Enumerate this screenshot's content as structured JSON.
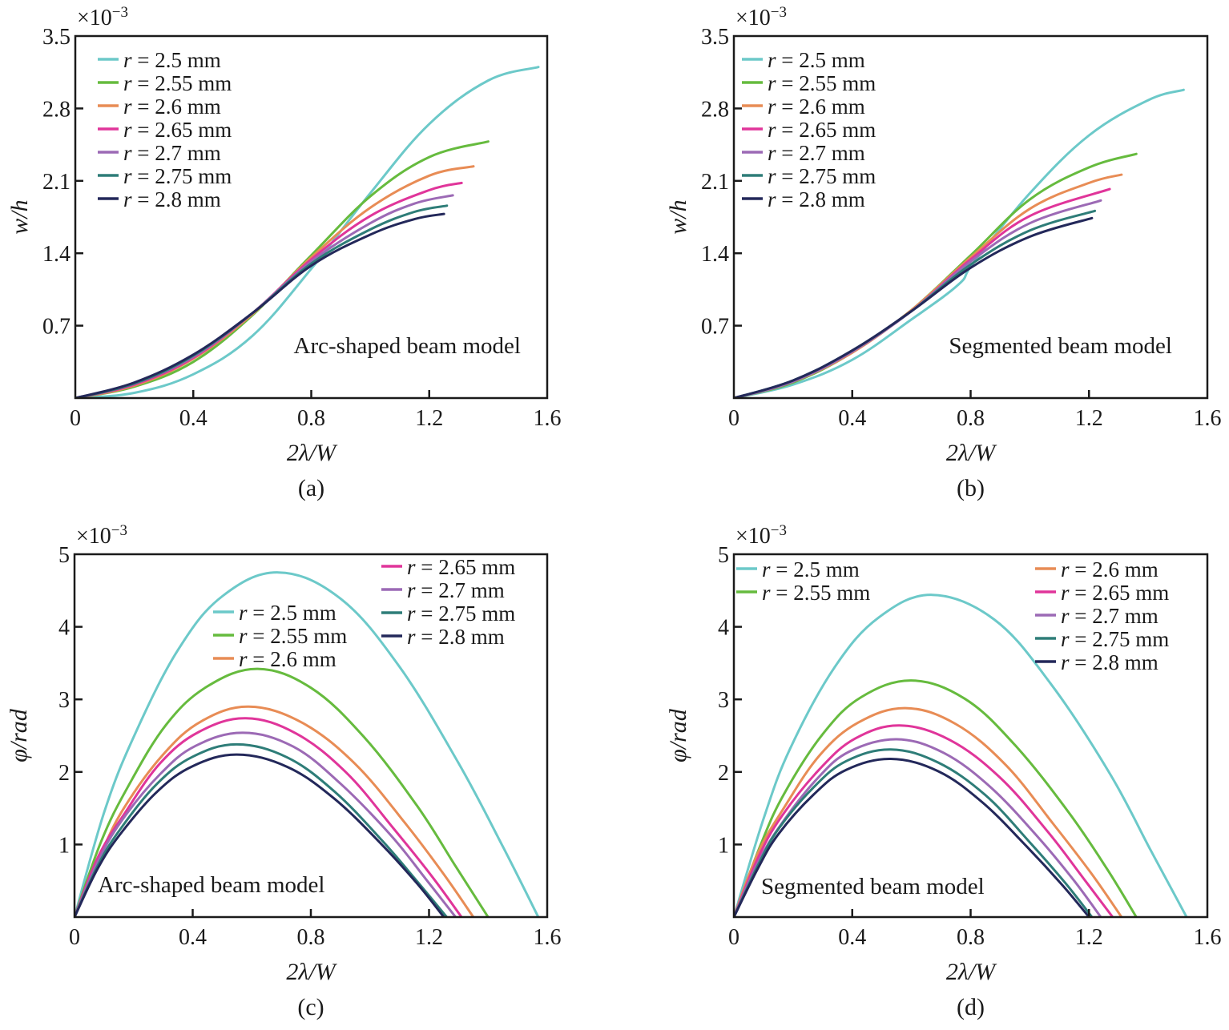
{
  "chart_data": [
    {
      "panel": "(a)",
      "type": "line",
      "title": "",
      "annotation": "Arc-shaped beam model",
      "xlabel": "2λ/W",
      "ylabel": "w/h",
      "y_multiplier": "×10⁻³",
      "xlim": [
        0,
        1.6
      ],
      "ylim": [
        0,
        3.5
      ],
      "xticks": [
        0,
        0.4,
        0.8,
        1.2,
        1.6
      ],
      "xtick_labels": [
        "0",
        "0.4",
        "0.8",
        "1.2",
        "1.6"
      ],
      "yticks": [
        0.7,
        1.4,
        2.1,
        2.8,
        3.5
      ],
      "ytick_labels": [
        "0.7",
        "1.4",
        "2.1",
        "2.8",
        "3.5"
      ],
      "grid": false,
      "legend_position": "top-left",
      "series": [
        {
          "name": "r = 2.5 mm",
          "color": "#6cc9c9",
          "x": [
            0,
            0.2,
            0.4,
            0.6,
            0.8,
            1.0,
            1.2,
            1.4,
            1.57
          ],
          "y": [
            0,
            0.05,
            0.23,
            0.6,
            1.25,
            1.98,
            2.65,
            3.07,
            3.2
          ]
        },
        {
          "name": "r = 2.55 mm",
          "color": "#66bb3e",
          "x": [
            0,
            0.2,
            0.4,
            0.6,
            0.8,
            1.0,
            1.2,
            1.4
          ],
          "y": [
            0,
            0.11,
            0.35,
            0.8,
            1.38,
            1.95,
            2.33,
            2.48
          ]
        },
        {
          "name": "r = 2.6 mm",
          "color": "#e88c55",
          "x": [
            0,
            0.2,
            0.4,
            0.6,
            0.8,
            1.0,
            1.2,
            1.35
          ],
          "y": [
            0,
            0.12,
            0.38,
            0.81,
            1.36,
            1.84,
            2.15,
            2.24
          ]
        },
        {
          "name": "r = 2.65 mm",
          "color": "#e0359a",
          "x": [
            0,
            0.2,
            0.4,
            0.6,
            0.8,
            1.0,
            1.2,
            1.31
          ],
          "y": [
            0,
            0.13,
            0.39,
            0.82,
            1.34,
            1.76,
            2.01,
            2.08
          ]
        },
        {
          "name": "r = 2.7 mm",
          "color": "#9c6ab5",
          "x": [
            0,
            0.2,
            0.4,
            0.6,
            0.8,
            1.0,
            1.15,
            1.28
          ],
          "y": [
            0,
            0.14,
            0.4,
            0.82,
            1.32,
            1.69,
            1.88,
            1.96
          ]
        },
        {
          "name": "r = 2.75 mm",
          "color": "#2e7d78",
          "x": [
            0,
            0.2,
            0.4,
            0.6,
            0.8,
            1.0,
            1.15,
            1.26
          ],
          "y": [
            0,
            0.14,
            0.41,
            0.82,
            1.3,
            1.63,
            1.8,
            1.86
          ]
        },
        {
          "name": "r = 2.8 mm",
          "color": "#23285a",
          "x": [
            0,
            0.2,
            0.4,
            0.6,
            0.8,
            1.0,
            1.15,
            1.25
          ],
          "y": [
            0,
            0.15,
            0.42,
            0.82,
            1.28,
            1.58,
            1.73,
            1.78
          ]
        }
      ]
    },
    {
      "panel": "(b)",
      "type": "line",
      "title": "",
      "annotation": "Segmented beam model",
      "xlabel": "2λ/W",
      "ylabel": "w/h",
      "y_multiplier": "×10⁻³",
      "xlim": [
        0,
        1.6
      ],
      "ylim": [
        0,
        3.5
      ],
      "xticks": [
        0,
        0.4,
        0.8,
        1.2,
        1.6
      ],
      "xtick_labels": [
        "0",
        "0.4",
        "0.8",
        "1.2",
        "1.6"
      ],
      "yticks": [
        0.7,
        1.4,
        2.1,
        2.8,
        3.5
      ],
      "ytick_labels": [
        "0.7",
        "1.4",
        "2.1",
        "2.8",
        "3.5"
      ],
      "grid": false,
      "legend_position": "top-left",
      "series": [
        {
          "name": "r = 2.5 mm",
          "color": "#6cc9c9",
          "x": [
            0,
            0.2,
            0.4,
            0.6,
            0.76,
            0.81,
            1.0,
            1.2,
            1.4,
            1.52
          ],
          "y": [
            0,
            0.13,
            0.37,
            0.76,
            1.1,
            1.31,
            1.98,
            2.54,
            2.88,
            2.98
          ]
        },
        {
          "name": "r = 2.55 mm",
          "color": "#66bb3e",
          "x": [
            0,
            0.2,
            0.4,
            0.6,
            0.8,
            1.0,
            1.2,
            1.36
          ],
          "y": [
            0,
            0.15,
            0.44,
            0.85,
            1.38,
            1.92,
            2.23,
            2.36
          ]
        },
        {
          "name": "r = 2.6 mm",
          "color": "#e88c55",
          "x": [
            0,
            0.2,
            0.4,
            0.6,
            0.8,
            1.0,
            1.2,
            1.31
          ],
          "y": [
            0,
            0.16,
            0.44,
            0.85,
            1.36,
            1.83,
            2.08,
            2.16
          ]
        },
        {
          "name": "r = 2.65 mm",
          "color": "#e0359a",
          "x": [
            0,
            0.2,
            0.4,
            0.6,
            0.8,
            1.0,
            1.27
          ],
          "y": [
            0,
            0.16,
            0.45,
            0.84,
            1.34,
            1.76,
            2.02
          ]
        },
        {
          "name": "r = 2.7 mm",
          "color": "#9c6ab5",
          "x": [
            0,
            0.2,
            0.4,
            0.6,
            0.8,
            1.0,
            1.24
          ],
          "y": [
            0,
            0.16,
            0.45,
            0.84,
            1.32,
            1.69,
            1.91
          ]
        },
        {
          "name": "r = 2.75 mm",
          "color": "#2e7d78",
          "x": [
            0,
            0.2,
            0.4,
            0.6,
            0.8,
            1.0,
            1.22
          ],
          "y": [
            0,
            0.17,
            0.46,
            0.84,
            1.29,
            1.62,
            1.81
          ]
        },
        {
          "name": "r = 2.8 mm",
          "color": "#23285a",
          "x": [
            0,
            0.2,
            0.4,
            0.6,
            0.8,
            1.0,
            1.21
          ],
          "y": [
            0,
            0.17,
            0.46,
            0.84,
            1.26,
            1.56,
            1.74
          ]
        }
      ]
    },
    {
      "panel": "(c)",
      "type": "line",
      "title": "",
      "annotation": "Arc-shaped beam model",
      "xlabel": "2λ/W",
      "ylabel": "φ/rad",
      "y_multiplier": "×10⁻³",
      "xlim": [
        0,
        1.6
      ],
      "ylim": [
        0,
        5
      ],
      "xticks": [
        0,
        0.4,
        0.8,
        1.2,
        1.6
      ],
      "xtick_labels": [
        "0",
        "0.4",
        "0.8",
        "1.2",
        "1.6"
      ],
      "yticks": [
        1,
        2,
        3,
        4,
        5
      ],
      "ytick_labels": [
        "1",
        "2",
        "3",
        "4",
        "5"
      ],
      "grid": false,
      "legend_position": "top-center / top-right (two columns)",
      "series": [
        {
          "name": "r = 2.5 mm",
          "color": "#6cc9c9",
          "x": [
            0,
            0.1,
            0.2,
            0.35,
            0.5,
            0.69,
            0.9,
            1.1,
            1.3,
            1.45,
            1.57
          ],
          "y": [
            0,
            1.44,
            2.48,
            3.68,
            4.42,
            4.75,
            4.39,
            3.45,
            2.12,
            0.97,
            0
          ]
        },
        {
          "name": "r = 2.55 mm",
          "color": "#66bb3e",
          "x": [
            0,
            0.09,
            0.18,
            0.31,
            0.45,
            0.62,
            0.8,
            0.98,
            1.16,
            1.29,
            1.4
          ],
          "y": [
            0,
            1.04,
            1.79,
            2.65,
            3.18,
            3.42,
            3.16,
            2.48,
            1.53,
            0.7,
            0
          ]
        },
        {
          "name": "r = 2.6 mm",
          "color": "#e88c55",
          "x": [
            0,
            0.09,
            0.17,
            0.3,
            0.43,
            0.59,
            0.77,
            0.95,
            1.12,
            1.25,
            1.35
          ],
          "y": [
            0,
            0.88,
            1.52,
            2.24,
            2.7,
            2.9,
            2.68,
            2.11,
            1.29,
            0.59,
            0
          ]
        },
        {
          "name": "r = 2.65 mm",
          "color": "#e0359a",
          "x": [
            0,
            0.08,
            0.17,
            0.29,
            0.42,
            0.58,
            0.75,
            0.92,
            1.08,
            1.21,
            1.31
          ],
          "y": [
            0,
            0.83,
            1.43,
            2.12,
            2.55,
            2.74,
            2.53,
            1.99,
            1.22,
            0.56,
            0
          ]
        },
        {
          "name": "r = 2.7 mm",
          "color": "#9c6ab5",
          "x": [
            0,
            0.08,
            0.16,
            0.29,
            0.41,
            0.57,
            0.74,
            0.9,
            1.07,
            1.19,
            1.29
          ],
          "y": [
            0,
            0.77,
            1.33,
            1.97,
            2.36,
            2.54,
            2.35,
            1.84,
            1.13,
            0.52,
            0
          ]
        },
        {
          "name": "r = 2.75 mm",
          "color": "#2e7d78",
          "x": [
            0,
            0.08,
            0.16,
            0.28,
            0.4,
            0.55,
            0.72,
            0.88,
            1.04,
            1.16,
            1.26
          ],
          "y": [
            0,
            0.72,
            1.24,
            1.84,
            2.21,
            2.38,
            2.2,
            1.73,
            1.06,
            0.49,
            0
          ]
        },
        {
          "name": "r = 2.8 mm",
          "color": "#23285a",
          "x": [
            0,
            0.08,
            0.16,
            0.28,
            0.4,
            0.55,
            0.72,
            0.88,
            1.04,
            1.16,
            1.25
          ],
          "y": [
            0,
            0.68,
            1.17,
            1.73,
            2.08,
            2.24,
            2.07,
            1.63,
            1.0,
            0.46,
            0
          ]
        }
      ]
    },
    {
      "panel": "(d)",
      "type": "line",
      "title": "",
      "annotation": "Segmented beam model",
      "xlabel": "2λ/W",
      "ylabel": "φ/rad",
      "y_multiplier": "×10⁻³",
      "xlim": [
        0,
        1.6
      ],
      "ylim": [
        0,
        5
      ],
      "xticks": [
        0,
        0.4,
        0.8,
        1.2,
        1.6
      ],
      "xtick_labels": [
        "0",
        "0.4",
        "0.8",
        "1.2",
        "1.6"
      ],
      "yticks": [
        1,
        2,
        3,
        4,
        5
      ],
      "ytick_labels": [
        "1",
        "2",
        "3",
        "4",
        "5"
      ],
      "grid": false,
      "legend_position": "top-left and top-right (two columns)",
      "series": [
        {
          "name": "r = 2.5 mm",
          "color": "#6cc9c9",
          "x": [
            0,
            0.1,
            0.19,
            0.34,
            0.49,
            0.67,
            0.88,
            1.07,
            1.27,
            1.41,
            1.53
          ],
          "y": [
            0,
            1.35,
            2.32,
            3.44,
            4.13,
            4.44,
            4.1,
            3.22,
            1.98,
            0.91,
            0
          ]
        },
        {
          "name": "r = 2.55 mm",
          "color": "#66bb3e",
          "x": [
            0,
            0.09,
            0.17,
            0.3,
            0.43,
            0.6,
            0.78,
            0.95,
            1.13,
            1.26,
            1.36
          ],
          "y": [
            0,
            0.99,
            1.7,
            2.52,
            3.03,
            3.26,
            3.01,
            2.37,
            1.45,
            0.67,
            0
          ]
        },
        {
          "name": "r = 2.6 mm",
          "color": "#e88c55",
          "x": [
            0,
            0.08,
            0.17,
            0.29,
            0.42,
            0.58,
            0.75,
            0.92,
            1.08,
            1.21,
            1.31
          ],
          "y": [
            0,
            0.87,
            1.51,
            2.23,
            2.68,
            2.88,
            2.66,
            2.09,
            1.28,
            0.59,
            0
          ]
        },
        {
          "name": "r = 2.65 mm",
          "color": "#e0359a",
          "x": [
            0,
            0.08,
            0.16,
            0.29,
            0.41,
            0.56,
            0.73,
            0.9,
            1.06,
            1.18,
            1.28
          ],
          "y": [
            0,
            0.8,
            1.38,
            2.04,
            2.46,
            2.64,
            2.44,
            1.92,
            1.18,
            0.54,
            0
          ]
        },
        {
          "name": "r = 2.7 mm",
          "color": "#9c6ab5",
          "x": [
            0,
            0.08,
            0.16,
            0.28,
            0.39,
            0.55,
            0.71,
            0.87,
            1.03,
            1.15,
            1.24
          ],
          "y": [
            0,
            0.74,
            1.28,
            1.9,
            2.28,
            2.45,
            2.26,
            1.78,
            1.09,
            0.5,
            0
          ]
        },
        {
          "name": "r = 2.75 mm",
          "color": "#2e7d78",
          "x": [
            0,
            0.08,
            0.15,
            0.27,
            0.38,
            0.53,
            0.69,
            0.85,
            1.0,
            1.12,
            1.21
          ],
          "y": [
            0,
            0.7,
            1.21,
            1.79,
            2.15,
            2.31,
            2.13,
            1.68,
            1.03,
            0.47,
            0
          ]
        },
        {
          "name": "r = 2.8 mm",
          "color": "#23285a",
          "x": [
            0,
            0.08,
            0.15,
            0.27,
            0.38,
            0.53,
            0.69,
            0.84,
            0.99,
            1.11,
            1.2
          ],
          "y": [
            0,
            0.66,
            1.14,
            1.69,
            2.03,
            2.18,
            2.01,
            1.58,
            0.97,
            0.44,
            0
          ]
        }
      ]
    }
  ]
}
